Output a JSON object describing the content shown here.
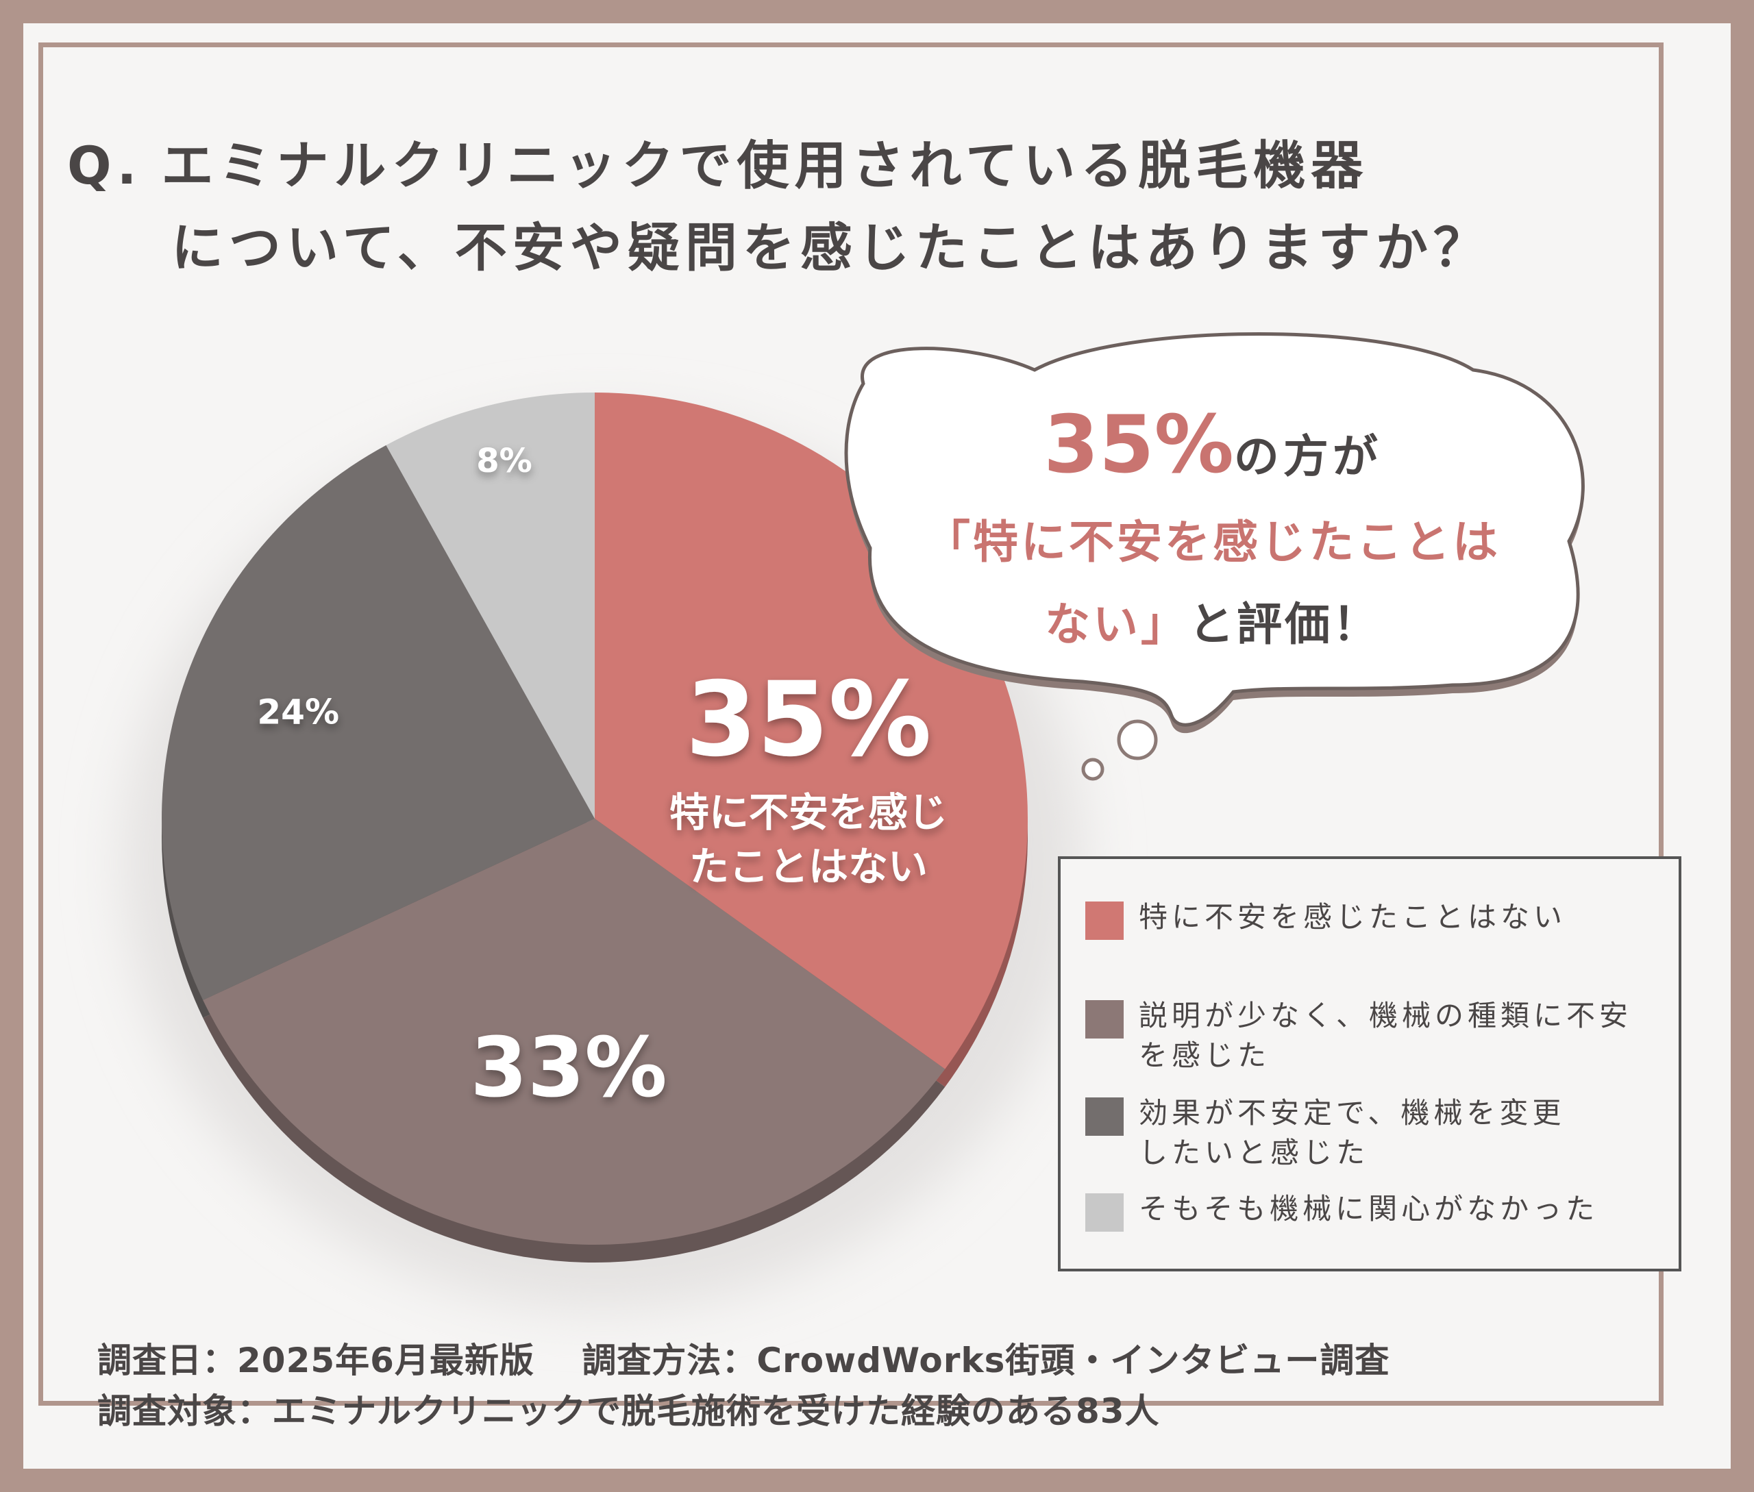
{
  "question": {
    "prefix": "Q.",
    "line1": "エミナルクリニックで使用されている脱毛機器",
    "line2": "について、不安や疑問を感じたことはありますか？"
  },
  "callout": {
    "percent": "35%",
    "line1_suffix": "の方が",
    "line2": "「特に不安を感じたことは",
    "line3_highlight": "ない」",
    "line3_suffix": "と評価！"
  },
  "chart_data": {
    "type": "pie",
    "title": "",
    "categories": [
      "特に不安を感じたことはない",
      "説明が少なく、機械の種類に不安を感じた",
      "効果が不安定で、機械を変更したいと感じた",
      "そもそも機械に関心がなかった"
    ],
    "values": [
      35,
      33,
      24,
      8
    ],
    "data_labels": [
      "35%",
      "33%",
      "24%",
      "8%"
    ],
    "slice_annotation": "特に不安を感じたことはない",
    "colors": [
      "#d07873",
      "#8c7876",
      "#736e6d",
      "#c8c8c8"
    ],
    "legend_position": "right"
  },
  "legend": {
    "items": [
      {
        "line1": "特に不安を感じたことはない",
        "line2": ""
      },
      {
        "line1": "説明が少なく、機械の種類に不安",
        "line2": "を感じた"
      },
      {
        "line1": "効果が不安定で、機械を変更",
        "line2": "したいと感じた"
      },
      {
        "line1": "そもそも機械に関心がなかった",
        "line2": ""
      }
    ]
  },
  "footer": {
    "line1": "調査日：2025年6月最新版　 調査方法：CrowdWorks街頭・インタビュー調査",
    "line2": "調査対象：エミナルクリニックで脱毛施術を受けた経験のある83人"
  },
  "colors": {
    "frame": "#b0958c",
    "accent": "#c97470",
    "text": "#4a4646"
  }
}
